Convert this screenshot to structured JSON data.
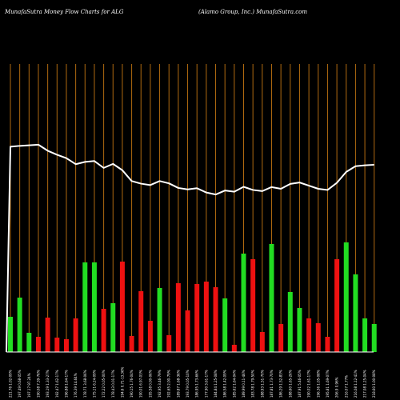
{
  "header": {
    "left": "MunafaSutra  Money Flow  Charts for ALG",
    "right": "(Alamo  Group,  Inc.) MunafaSutra.com"
  },
  "chart_data": {
    "type": "bar",
    "title": "MunafaSutra  Money Flow  Charts for ALG",
    "subtitle": "(Alamo  Group,  Inc.) MunafaSutra.com",
    "colors": {
      "up": "#22dd22",
      "down": "#ee1111",
      "price_line": "#ffffff",
      "grid": "#b06a10",
      "background": "#000000"
    },
    "categories": [
      "221.76 1.02-09%",
      "197.49 0.68-05%",
      "197.17 97.24%",
      "190.08 7.39-76%",
      "193.19 1.33-27%",
      "192.47 1.62-17%",
      "196.88 1.64-17%",
      "176.39 14.64%",
      "178.71 3.68-06%",
      "175.11 6.24-09%",
      "172.22 0.05-00%",
      "178.43 0.01-17%",
      "194.6 0.71-13.36%",
      "190.15 1.76-04%",
      "190.01 6.97-03%",
      "195.58 0.00-06%",
      "192.95 3.46-79%",
      "192.65 2.00-79%",
      "189.87 1.68-36%",
      "193.79 0.05-10%",
      "186.95 1.73-66%",
      "177.90 3.61-17%",
      "184.84 1.25-08%",
      "186.58 1.42-09%",
      "185.62 1.64-04%",
      "189.99 0.11-46%",
      "183.78 1.79-50%",
      "188.93 1.51-70%",
      "187.81 1.73-70%",
      "186.29 1.52-83%",
      "188.60 1.65-26%",
      "187.91 5.46-05%",
      "190.02 1.61-17%",
      "196.36 1.05-08%",
      "195.81 1.69-07%",
      "206.9 0.96%",
      "216.07 1.77%",
      "216.08 1.12-41%",
      "217.08 1.25-04%",
      "218.60 1.00-08%"
    ],
    "flow": [
      {
        "v": 44,
        "d": "up"
      },
      {
        "v": 68,
        "d": "up"
      },
      {
        "v": 24,
        "d": "up"
      },
      {
        "v": 19,
        "d": "down"
      },
      {
        "v": 43,
        "d": "down"
      },
      {
        "v": 18,
        "d": "down"
      },
      {
        "v": 16,
        "d": "down"
      },
      {
        "v": 42,
        "d": "down"
      },
      {
        "v": 112,
        "d": "up"
      },
      {
        "v": 112,
        "d": "up"
      },
      {
        "v": 54,
        "d": "down"
      },
      {
        "v": 61,
        "d": "up"
      },
      {
        "v": 113,
        "d": "down"
      },
      {
        "v": 20,
        "d": "down"
      },
      {
        "v": 76,
        "d": "down"
      },
      {
        "v": 39,
        "d": "down"
      },
      {
        "v": 80,
        "d": "up"
      },
      {
        "v": 21,
        "d": "down"
      },
      {
        "v": 86,
        "d": "down"
      },
      {
        "v": 52,
        "d": "down"
      },
      {
        "v": 85,
        "d": "down"
      },
      {
        "v": 88,
        "d": "down"
      },
      {
        "v": 81,
        "d": "down"
      },
      {
        "v": 67,
        "d": "up"
      },
      {
        "v": 9,
        "d": "down"
      },
      {
        "v": 123,
        "d": "up"
      },
      {
        "v": 116,
        "d": "down"
      },
      {
        "v": 25,
        "d": "down"
      },
      {
        "v": 135,
        "d": "up"
      },
      {
        "v": 35,
        "d": "down"
      },
      {
        "v": 75,
        "d": "up"
      },
      {
        "v": 55,
        "d": "up"
      },
      {
        "v": 42,
        "d": "down"
      },
      {
        "v": 36,
        "d": "down"
      },
      {
        "v": 19,
        "d": "down"
      },
      {
        "v": 116,
        "d": "down"
      },
      {
        "v": 137,
        "d": "up"
      },
      {
        "v": 97,
        "d": "up"
      },
      {
        "v": 42,
        "d": "up"
      },
      {
        "v": 35,
        "d": "up"
      }
    ],
    "price": [
      221.7,
      222.0,
      222.2,
      222.4,
      220.3,
      218.9,
      217.7,
      215.6,
      216.4,
      216.7,
      214.3,
      215.7,
      213.5,
      209.7,
      208.8,
      208.3,
      209.7,
      208.9,
      207.3,
      206.8,
      207.2,
      205.7,
      205.0,
      206.4,
      206.0,
      207.7,
      206.6,
      206.2,
      207.6,
      207.0,
      208.7,
      209.2,
      208.1,
      207.0,
      206.6,
      209.1,
      212.9,
      214.9,
      215.2,
      215.4
    ],
    "price_start": 150,
    "ylim_flow": [
      0,
      140
    ],
    "ylim_price": [
      150,
      226
    ]
  }
}
